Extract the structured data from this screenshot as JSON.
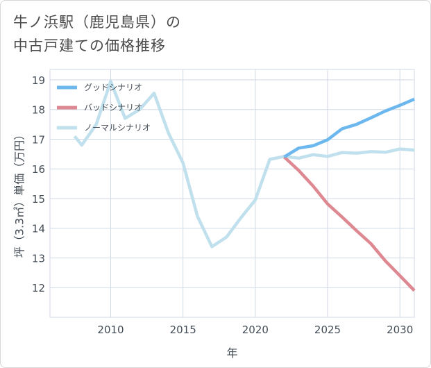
{
  "title": {
    "line1": "牛ノ浜駅（鹿児島県）の",
    "line2": "中古戸建ての価格推移"
  },
  "colors": {
    "good": "#6cb8ee",
    "bad": "#de8891",
    "normal": "#bfe0ec",
    "grid": "#d0dae6",
    "axis": "#444c55"
  },
  "chart_data": {
    "type": "line",
    "title": "牛ノ浜駅（鹿児島県）の中古戸建ての価格推移",
    "xlabel": "年",
    "ylabel": "坪（3.3㎡）単価（万円）",
    "xlim": [
      2005.8,
      2031
    ],
    "ylim": [
      11,
      19.35
    ],
    "xticks": [
      2010,
      2015,
      2020,
      2025,
      2030
    ],
    "yticks": [
      12,
      13,
      14,
      15,
      16,
      17,
      18,
      19
    ],
    "legend_position": "top-left",
    "series": [
      {
        "name": "グッドシナリオ",
        "color": "#6cb8ee",
        "x": [
          2022,
          2023,
          2024,
          2025,
          2026,
          2027,
          2028,
          2029,
          2030,
          2031
        ],
        "y": [
          16.4,
          16.7,
          16.78,
          16.98,
          17.35,
          17.5,
          17.72,
          17.95,
          18.14,
          18.35
        ]
      },
      {
        "name": "バッドシナリオ",
        "color": "#de8891",
        "x": [
          2022,
          2023,
          2024,
          2025,
          2026,
          2027,
          2028,
          2029,
          2030,
          2031
        ],
        "y": [
          16.4,
          15.95,
          15.42,
          14.82,
          14.38,
          13.92,
          13.48,
          12.9,
          12.4,
          11.9
        ]
      },
      {
        "name": "ノーマルシナリオ",
        "color": "#bfe0ec",
        "x": [
          2007.5,
          2008,
          2009,
          2010,
          2011,
          2012,
          2013,
          2014,
          2015,
          2016,
          2017,
          2018,
          2019,
          2020,
          2021,
          2022,
          2023,
          2024,
          2025,
          2026,
          2027,
          2028,
          2029,
          2030,
          2031
        ],
        "y": [
          17.1,
          16.8,
          17.5,
          18.95,
          17.7,
          18.0,
          18.55,
          17.2,
          16.2,
          14.4,
          13.38,
          13.7,
          14.35,
          14.95,
          16.32,
          16.42,
          16.36,
          16.48,
          16.42,
          16.55,
          16.53,
          16.58,
          16.56,
          16.67,
          16.63
        ]
      }
    ]
  }
}
